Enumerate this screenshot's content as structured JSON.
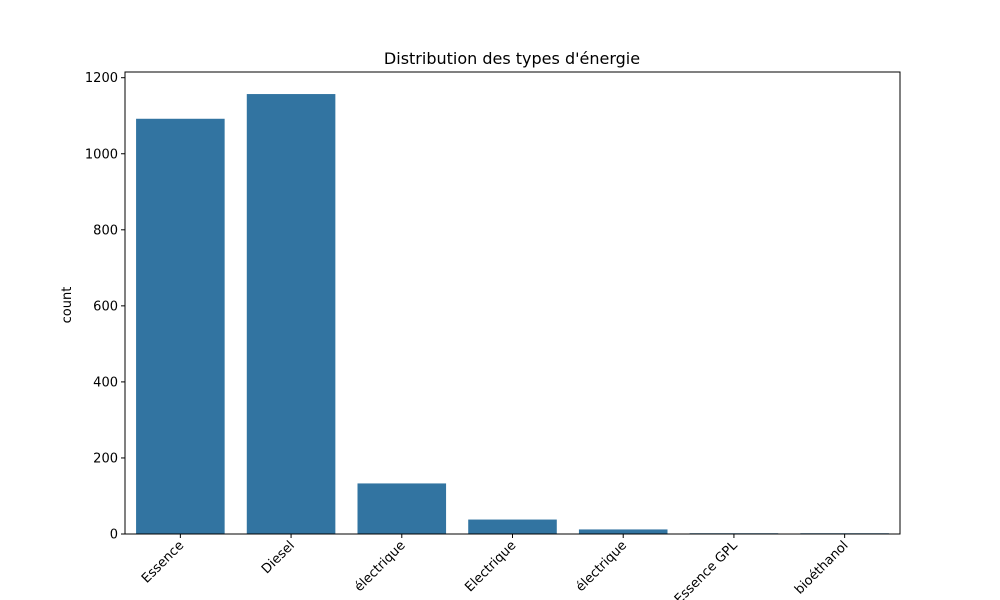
{
  "chart_data": {
    "type": "bar",
    "title": "Distribution des types d'énergie",
    "xlabel": "",
    "ylabel": "count",
    "categories": [
      "Essence",
      "Diesel",
      "électrique",
      "Electrique",
      "électrique",
      "Essence GPL",
      "bioéthanol"
    ],
    "values": [
      1092,
      1157,
      133,
      38,
      12,
      2,
      2
    ],
    "ylim": [
      0,
      1215
    ],
    "yticks": [
      0,
      200,
      400,
      600,
      800,
      1000,
      1200
    ],
    "grid": false,
    "bar_color": "#3274a1"
  }
}
